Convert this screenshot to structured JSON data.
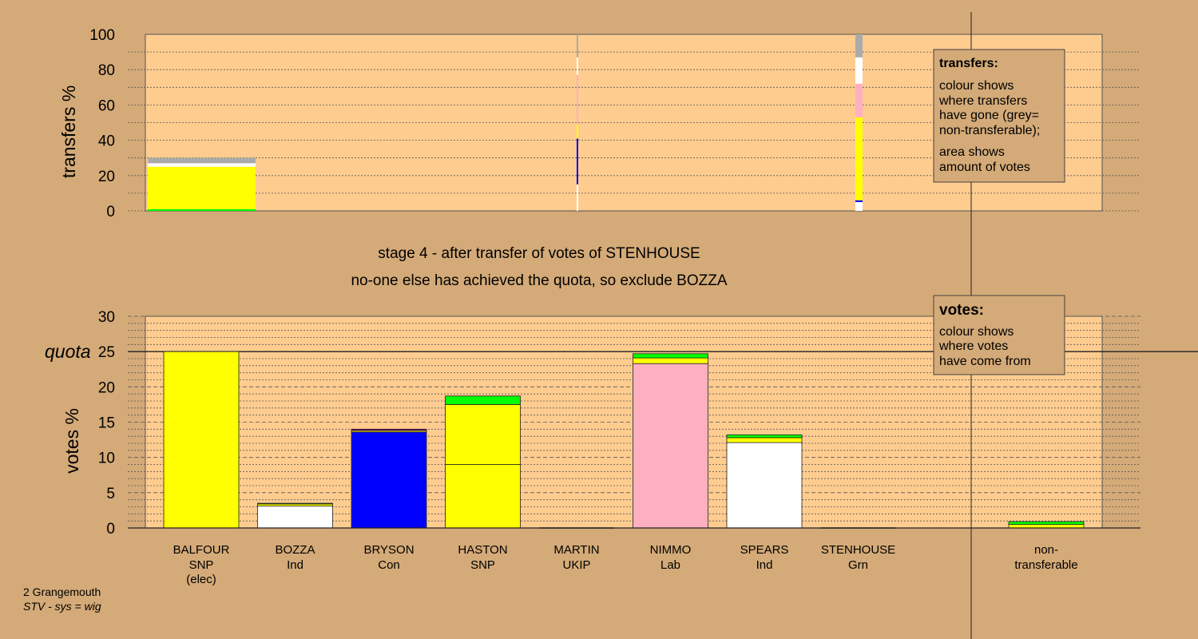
{
  "colors": {
    "page_bg": "#d4aa78",
    "plot_bg": "#ffcc90",
    "SNP": "#ffff00",
    "Con": "#0000ff",
    "Lab": "#ffb0c0",
    "Ind": "#ffffff",
    "Grn": "#00ff00",
    "UKIP": "#800080",
    "nontransferable": "#aaaaaa"
  },
  "title_lines": {
    "line1": "stage 4 - after transfer of votes of STENHOUSE",
    "line2": "no-one else has achieved the quota, so exclude BOZZA"
  },
  "legend_transfers": {
    "title": "transfers:",
    "line1": "colour shows",
    "line2": "where transfers",
    "line3": "have gone (grey=",
    "line4": "non-transferable);",
    "line5": "area shows",
    "line6": "amount of votes"
  },
  "legend_votes": {
    "title": "votes:",
    "line1": "colour shows",
    "line2": "where votes",
    "line3": "have come from"
  },
  "footer": {
    "ward": "2 Grangemouth",
    "system": "STV - sys = wig"
  },
  "chart_data": [
    {
      "type": "bar",
      "title": "transfers",
      "ylabel": "transfers %",
      "ylim": [
        0,
        100
      ],
      "yticks": [
        0,
        20,
        40,
        60,
        80,
        100
      ],
      "bars": [
        {
          "source": "BALFOUR",
          "value": 30,
          "segments": [
            {
              "to": "Grn",
              "value": 1
            },
            {
              "to": "SNP",
              "value": 24
            },
            {
              "to": "Ind",
              "value": 2
            },
            {
              "to": "nontransferable",
              "value": 3
            }
          ]
        },
        {
          "source": "MARTIN",
          "value": 100,
          "segments": [
            {
              "to": "Ind",
              "value": 15
            },
            {
              "to": "Con",
              "value": 26
            },
            {
              "to": "SNP",
              "value": 8
            },
            {
              "to": "Lab",
              "value": 28
            },
            {
              "to": "Ind",
              "value": 10
            },
            {
              "to": "nontransferable",
              "value": 13
            }
          ]
        },
        {
          "source": "STENHOUSE",
          "value": 100,
          "segments": [
            {
              "to": "Ind",
              "value": 5
            },
            {
              "to": "Con",
              "value": 1
            },
            {
              "to": "SNP",
              "value": 47
            },
            {
              "to": "Lab",
              "value": 19
            },
            {
              "to": "Ind",
              "value": 15
            },
            {
              "to": "nontransferable",
              "value": 13
            }
          ]
        }
      ]
    },
    {
      "type": "bar",
      "title": "votes",
      "ylabel": "votes %",
      "quota_label": "quota",
      "quota": 25,
      "ylim": [
        0,
        30
      ],
      "yticks": [
        0,
        5,
        10,
        15,
        20,
        25,
        30
      ],
      "candidates": [
        {
          "name": "BALFOUR",
          "party": "SNP",
          "note": "(elec)",
          "total": 25,
          "segments": [
            {
              "from": "SNP",
              "value": 25
            }
          ]
        },
        {
          "name": "BOZZA",
          "party": "Ind",
          "note": "",
          "total": 3.5,
          "segments": [
            {
              "from": "Ind",
              "value": 3.1
            },
            {
              "from": "SNP",
              "value": 0.3
            },
            {
              "from": "Grn",
              "value": 0.1
            }
          ]
        },
        {
          "name": "BRYSON",
          "party": "Con",
          "note": "",
          "total": 14,
          "segments": [
            {
              "from": "Con",
              "value": 13.6
            },
            {
              "from": "SNP",
              "value": 0.2
            },
            {
              "from": "UKIP",
              "value": 0.2
            }
          ]
        },
        {
          "name": "HASTON",
          "party": "SNP",
          "note": "",
          "total": 18.7,
          "segments": [
            {
              "from": "SNP",
              "value": 9
            },
            {
              "from": "SNP",
              "value": 8.5
            },
            {
              "from": "Grn",
              "value": 1.2
            }
          ]
        },
        {
          "name": "MARTIN",
          "party": "UKIP",
          "note": "",
          "total": 0,
          "segments": []
        },
        {
          "name": "NIMMO",
          "party": "Lab",
          "note": "",
          "total": 24.7,
          "segments": [
            {
              "from": "Lab",
              "value": 23.3
            },
            {
              "from": "SNP",
              "value": 0.8
            },
            {
              "from": "Grn",
              "value": 0.6
            }
          ]
        },
        {
          "name": "SPEARS",
          "party": "Ind",
          "note": "",
          "total": 13.2,
          "segments": [
            {
              "from": "Ind",
              "value": 12.1
            },
            {
              "from": "SNP",
              "value": 0.7
            },
            {
              "from": "Grn",
              "value": 0.4
            }
          ]
        },
        {
          "name": "STENHOUSE",
          "party": "Grn",
          "note": "",
          "total": 0,
          "segments": []
        }
      ],
      "nontransferable": {
        "line1": "non-",
        "line2": "transferable",
        "total": 0.9,
        "segments": [
          {
            "from": "SNP",
            "value": 0.5
          },
          {
            "from": "Grn",
            "value": 0.4
          }
        ]
      }
    }
  ]
}
